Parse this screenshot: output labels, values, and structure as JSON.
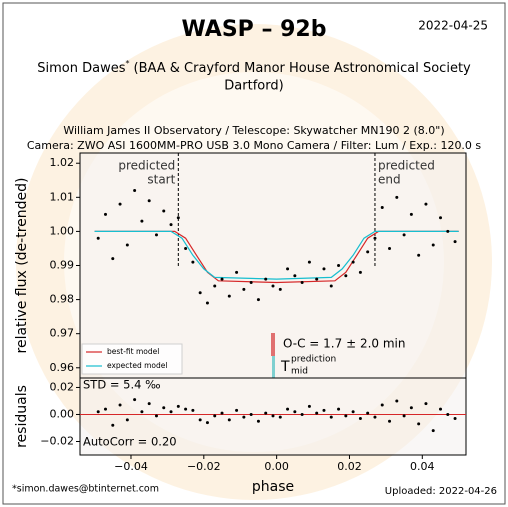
{
  "header": {
    "title": "WASP – 92b",
    "date": "2022-04-25",
    "author": "Simon Dawes",
    "author_mark": "*",
    "affiliation": [
      "(BAA & Crayford Manor House Astronomical Society",
      "Dartford)"
    ],
    "observatory": "William James II Observatory / Telescope: Skywatcher MN190 2 (8.0\")",
    "camera": "Camera: ZWO ASI 1600MM-PRO USB 3.0 Mono Camera / Filter: Lum / Exp.: 120.0 s"
  },
  "footer": {
    "email": "*simon.dawes@btinternet.com",
    "uploaded": "Uploaded: 2022-04-26"
  },
  "chart_data": [
    {
      "type": "scatter",
      "ylabel": "relative flux (de-trended)",
      "color": "#000000",
      "x": [
        -0.049,
        -0.047,
        -0.045,
        -0.043,
        -0.041,
        -0.039,
        -0.037,
        -0.035,
        -0.033,
        -0.031,
        -0.029,
        -0.027,
        -0.025,
        -0.023,
        -0.021,
        -0.019,
        -0.017,
        -0.015,
        -0.013,
        -0.011,
        -0.009,
        -0.007,
        -0.005,
        -0.003,
        -0.001,
        0.001,
        0.003,
        0.005,
        0.007,
        0.009,
        0.011,
        0.013,
        0.015,
        0.017,
        0.019,
        0.021,
        0.023,
        0.025,
        0.027,
        0.029,
        0.031,
        0.033,
        0.035,
        0.037,
        0.039,
        0.041,
        0.043,
        0.045,
        0.047,
        0.049
      ],
      "values": [
        0.998,
        1.005,
        0.992,
        1.008,
        0.996,
        1.012,
        1.003,
        1.009,
        0.999,
        1.006,
        1.002,
        1.004,
        0.995,
        0.991,
        0.982,
        0.979,
        0.984,
        0.986,
        0.981,
        0.988,
        0.983,
        0.985,
        0.98,
        0.986,
        0.984,
        0.983,
        0.989,
        0.987,
        0.985,
        0.991,
        0.986,
        0.989,
        0.984,
        0.99,
        0.987,
        0.991,
        0.988,
        0.994,
        0.998,
        1.007,
        0.995,
        1.01,
        0.999,
        1.005,
        0.993,
        1.008,
        0.996,
        1.004,
        1.0,
        0.997
      ],
      "models": [
        {
          "name": "best-fit model",
          "color": "#d62728",
          "x": [
            -0.05,
            -0.028,
            -0.025,
            -0.022,
            -0.019,
            -0.016,
            0.0,
            0.016,
            0.019,
            0.022,
            0.025,
            0.028,
            0.05
          ],
          "values": [
            1.0,
            1.0,
            0.998,
            0.993,
            0.988,
            0.9855,
            0.985,
            0.9855,
            0.988,
            0.993,
            0.998,
            1.0,
            1.0
          ]
        },
        {
          "name": "expected model",
          "color": "#17becf",
          "x": [
            -0.05,
            -0.029,
            -0.026,
            -0.023,
            -0.02,
            -0.017,
            0.0,
            0.015,
            0.018,
            0.021,
            0.024,
            0.027,
            0.05
          ],
          "values": [
            1.0,
            1.0,
            0.998,
            0.993,
            0.989,
            0.9865,
            0.986,
            0.9865,
            0.989,
            0.993,
            0.998,
            1.0,
            1.0
          ]
        }
      ],
      "markers": [
        {
          "x": -0.027,
          "label": [
            "predicted",
            "start"
          ]
        },
        {
          "x": 0.027,
          "label": [
            "predicted",
            "end"
          ]
        }
      ],
      "annotation": "O-C = 1.7 ± 2.0 min",
      "tmid": {
        "main": "T",
        "sup": "prediction",
        "sub": "mid"
      },
      "legend": "lower left",
      "xlim": [
        -0.054,
        0.052
      ],
      "ylim": [
        0.957,
        1.023
      ],
      "yticks": [
        0.96,
        0.97,
        0.98,
        0.99,
        {
          "value": 1,
          "label": "1.00"
        },
        1.01,
        1.02
      ]
    },
    {
      "type": "scatter",
      "ylabel": "residuals",
      "xlabel": "phase",
      "color": "#000000",
      "zero_line_color": "#d62728",
      "x": [
        -0.049,
        -0.047,
        -0.045,
        -0.043,
        -0.041,
        -0.039,
        -0.037,
        -0.035,
        -0.033,
        -0.031,
        -0.029,
        -0.027,
        -0.025,
        -0.023,
        -0.021,
        -0.019,
        -0.017,
        -0.015,
        -0.013,
        -0.011,
        -0.009,
        -0.007,
        -0.005,
        -0.003,
        -0.001,
        0.001,
        0.003,
        0.005,
        0.007,
        0.009,
        0.011,
        0.013,
        0.015,
        0.017,
        0.019,
        0.021,
        0.023,
        0.025,
        0.027,
        0.029,
        0.031,
        0.033,
        0.035,
        0.037,
        0.039,
        0.041,
        0.043,
        0.045,
        0.047,
        0.049
      ],
      "values": [
        0.002,
        0.004,
        -0.008,
        0.007,
        -0.004,
        0.011,
        0.002,
        0.008,
        -0.001,
        0.005,
        0.002,
        0.006,
        0.004,
        0.003,
        -0.004,
        -0.006,
        -0.001,
        0.001,
        -0.004,
        0.003,
        -0.002,
        0.0,
        -0.005,
        0.001,
        -0.001,
        -0.002,
        0.004,
        0.002,
        0.0,
        0.006,
        0.001,
        0.003,
        -0.002,
        0.004,
        -0.001,
        0.002,
        -0.003,
        0.001,
        -0.002,
        0.007,
        -0.005,
        0.01,
        -0.001,
        0.005,
        -0.007,
        0.008,
        -0.012,
        0.004,
        0.0,
        -0.003
      ],
      "stats": [
        "STD = 5.4 ‰",
        "AutoCorr = 0.20"
      ],
      "xlim": [
        -0.054,
        0.052
      ],
      "ylim": [
        -0.03,
        0.027
      ],
      "xticks": [
        {
          "value": -0.04,
          "label": "−0.04"
        },
        {
          "value": -0.02,
          "label": "−0.02"
        },
        {
          "value": 0,
          "label": "0.00"
        },
        0.02,
        0.04
      ],
      "yticks": [
        {
          "value": -0.02,
          "label": "−0.02"
        },
        {
          "value": 0,
          "label": "0.00"
        },
        0.02
      ]
    }
  ]
}
